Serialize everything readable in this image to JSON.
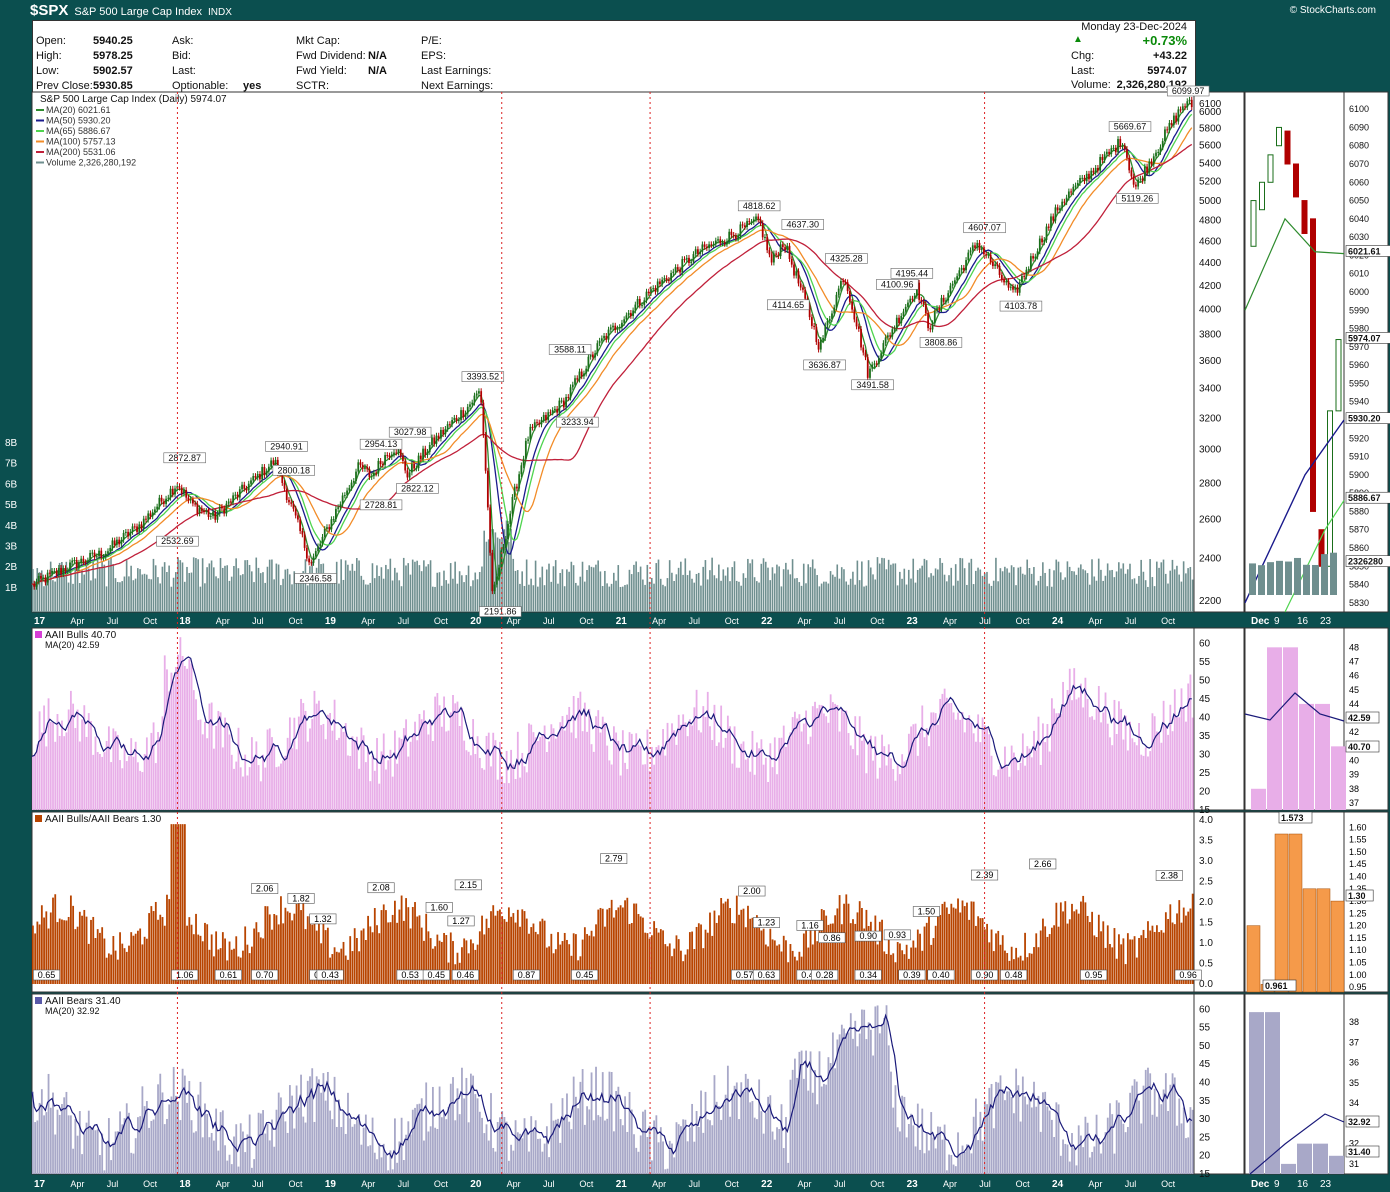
{
  "header": {
    "symbol": "$SPX",
    "name": "S&P 500 Large Cap Index",
    "exchange": "INDX",
    "watermark": "© StockCharts.com"
  },
  "quote": {
    "left_labels": [
      "Open:",
      "High:",
      "Low:",
      "Prev Close:"
    ],
    "left_values": [
      "5940.25",
      "5978.25",
      "5902.57",
      "5930.85"
    ],
    "mid_labels": [
      "Ask:",
      "Bid:",
      "Last:",
      "Optionable:"
    ],
    "mid_values": [
      "",
      "",
      "",
      "yes"
    ],
    "mkt_labels": [
      "Mkt Cap:",
      "Fwd Dividend:",
      "Fwd Yield:",
      "SCTR:"
    ],
    "mkt_values": [
      "",
      "N/A",
      "N/A",
      ""
    ],
    "pe_labels": [
      "P/E:",
      "EPS:",
      "Last Earnings:",
      "Next Earnings:"
    ],
    "date": "Monday  23-Dec-2024",
    "pct_change": "+0.73%",
    "chg_label": "Chg:",
    "chg": "+43.22",
    "last_label": "Last:",
    "last": "5974.07",
    "volume_label": "Volume:",
    "volume": "2,326,280,192"
  },
  "colors": {
    "price_up": "#1a6e1a",
    "price_down": "#b00000",
    "ma20": "#2e8b2e",
    "ma50": "#1a1a8c",
    "ma65": "#4fd44f",
    "ma100": "#f28c28",
    "ma200": "#c0203a",
    "volume": "#6f8f8f",
    "bulls": "#e8aee8",
    "ratio": "#b84400",
    "ratio_zoom": "#f59a4a",
    "bears": "#a8a8c8",
    "ma_line": "#1a1a7a"
  },
  "x_axis_labels": [
    "17",
    "Apr",
    "Jul",
    "Oct",
    "18",
    "Apr",
    "Jul",
    "Oct",
    "19",
    "Apr",
    "Jul",
    "Oct",
    "20",
    "Apr",
    "Jul",
    "Oct",
    "21",
    "Apr",
    "Jul",
    "Oct",
    "22",
    "Apr",
    "Jul",
    "Oct",
    "23",
    "Apr",
    "Jul",
    "Oct",
    "24",
    "Apr",
    "Jul",
    "Oct"
  ],
  "zoom_x_labels": [
    "Dec",
    "9",
    "16",
    "23"
  ],
  "chart_data": [
    {
      "type": "line",
      "title": "S&P 500 Large Cap Index (Daily) 5974.07",
      "legend": [
        "MA(20) 6021.61",
        "MA(50) 5930.20",
        "MA(65) 5886.67",
        "MA(100) 5757.13",
        "MA(200) 5531.06",
        "Volume 2,326,280,192"
      ],
      "series": [
        {
          "name": "Close",
          "x": [
            "2017-01",
            "2017-04",
            "2017-07",
            "2017-10",
            "2018-01",
            "2018-02",
            "2018-04",
            "2018-07",
            "2018-09",
            "2018-12",
            "2019-04",
            "2019-05",
            "2019-06",
            "2019-07",
            "2019-08",
            "2019-10",
            "2020-01",
            "2020-02",
            "2020-03",
            "2020-06",
            "2020-09",
            "2020-12",
            "2021-04",
            "2021-08",
            "2022-01",
            "2022-02",
            "2022-03",
            "2022-06",
            "2022-08",
            "2022-10",
            "2023-02",
            "2023-03",
            "2023-07",
            "2023-10",
            "2024-02",
            "2024-04",
            "2024-07",
            "2024-08",
            "2024-12"
          ],
          "y": [
            2270,
            2360,
            2430,
            2575,
            2800,
            2690,
            2610,
            2800,
            2930,
            2370,
            2900,
            2840,
            2950,
            3020,
            2850,
            3040,
            3280,
            3390,
            2200,
            3100,
            3320,
            3750,
            4150,
            4500,
            4800,
            4400,
            4600,
            3700,
            4300,
            3500,
            4190,
            3860,
            4590,
            4110,
            5000,
            5250,
            5669,
            5119,
            6090
          ]
        }
      ],
      "annotations": [
        "2872.87",
        "2532.69",
        "2940.91",
        "2800.18",
        "2346.58",
        "2954.13",
        "3027.98",
        "2822.12",
        "2728.81",
        "3393.52",
        "2191.86",
        "3588.11",
        "3233.94",
        "4818.62",
        "4637.30",
        "4114.65",
        "3636.87",
        "4325.28",
        "4100.96",
        "4195.44",
        "3491.58",
        "3808.86",
        "4607.07",
        "4103.78",
        "5669.67",
        "5119.26",
        "6099.97"
      ],
      "y_ticks": [
        "6100",
        "6000",
        "5800",
        "5600",
        "5400",
        "5200",
        "5000",
        "4800",
        "4600",
        "4400",
        "4200",
        "4000",
        "3800",
        "3600",
        "3400",
        "3200",
        "3000",
        "2800",
        "2600",
        "2400",
        "2200"
      ],
      "volume_ticks": [
        "8B",
        "7B",
        "6B",
        "5B",
        "4B",
        "3B",
        "2B",
        "1B"
      ],
      "zoom_y_ticks": [
        "6100",
        "6090",
        "6080",
        "6070",
        "6060",
        "6050",
        "6040",
        "6030",
        "6020",
        "6010",
        "6000",
        "5990",
        "5980",
        "5970",
        "5960",
        "5950",
        "5940",
        "5930",
        "5920",
        "5910",
        "5900",
        "5890",
        "5880",
        "5870",
        "5860",
        "5850",
        "5840",
        "5830"
      ],
      "zoom_tags": [
        "6021.61",
        "5974.07",
        "5930.20",
        "5886.67",
        "2326280"
      ]
    },
    {
      "type": "area",
      "title": "AAII Bulls 40.70",
      "legend": [
        "MA(20) 42.59"
      ],
      "y_ticks": [
        "60",
        "55",
        "50",
        "45",
        "40",
        "35",
        "30",
        "25",
        "20",
        "15"
      ],
      "zoom_y_ticks": [
        "48",
        "47",
        "46",
        "45",
        "44",
        "43",
        "42",
        "41",
        "40",
        "39",
        "38",
        "37"
      ],
      "zoom_tags": [
        "42.59",
        "40.70"
      ]
    },
    {
      "type": "bar",
      "title": "AAII Bulls/AAII Bears 1.30",
      "peaks": [
        "2.06",
        "1.82",
        "1.32",
        "2.08",
        "1.60",
        "1.27",
        "2.15",
        "2.79",
        "2.00",
        "1.23",
        "1.16",
        "0.86",
        "0.90",
        "0.93",
        "1.50",
        "2.39",
        "2.66",
        "2.38"
      ],
      "troughs": [
        "0.65",
        "1.06",
        "0.61",
        "0.70",
        "0.54",
        "0.43",
        "0.53",
        "0.45",
        "0.46",
        "0.87",
        "0.45",
        "0.57",
        "0.63",
        "0.44",
        "0.28",
        "0.34",
        "0.39",
        "0.40",
        "0.90",
        "0.48",
        "0.95",
        "0.96"
      ],
      "y_ticks": [
        "4.0",
        "3.5",
        "3.0",
        "2.5",
        "2.0",
        "1.5",
        "1.0",
        "0.5",
        "0.0"
      ],
      "zoom_peak": "1.573",
      "zoom_trough": "0.961",
      "zoom_y_ticks": [
        "1.60",
        "1.55",
        "1.50",
        "1.45",
        "1.40",
        "1.35",
        "1.30",
        "1.25",
        "1.20",
        "1.15",
        "1.10",
        "1.05",
        "1.00",
        "0.95"
      ],
      "zoom_tags": [
        "1.30"
      ]
    },
    {
      "type": "area",
      "title": "AAII Bears 31.40",
      "legend": [
        "MA(20) 32.92"
      ],
      "y_ticks": [
        "60",
        "55",
        "50",
        "45",
        "40",
        "35",
        "30",
        "25",
        "20",
        "15"
      ],
      "zoom_y_ticks": [
        "38",
        "37",
        "36",
        "35",
        "34",
        "33",
        "32",
        "31"
      ],
      "zoom_tags": [
        "32.92",
        "31.40"
      ]
    }
  ]
}
